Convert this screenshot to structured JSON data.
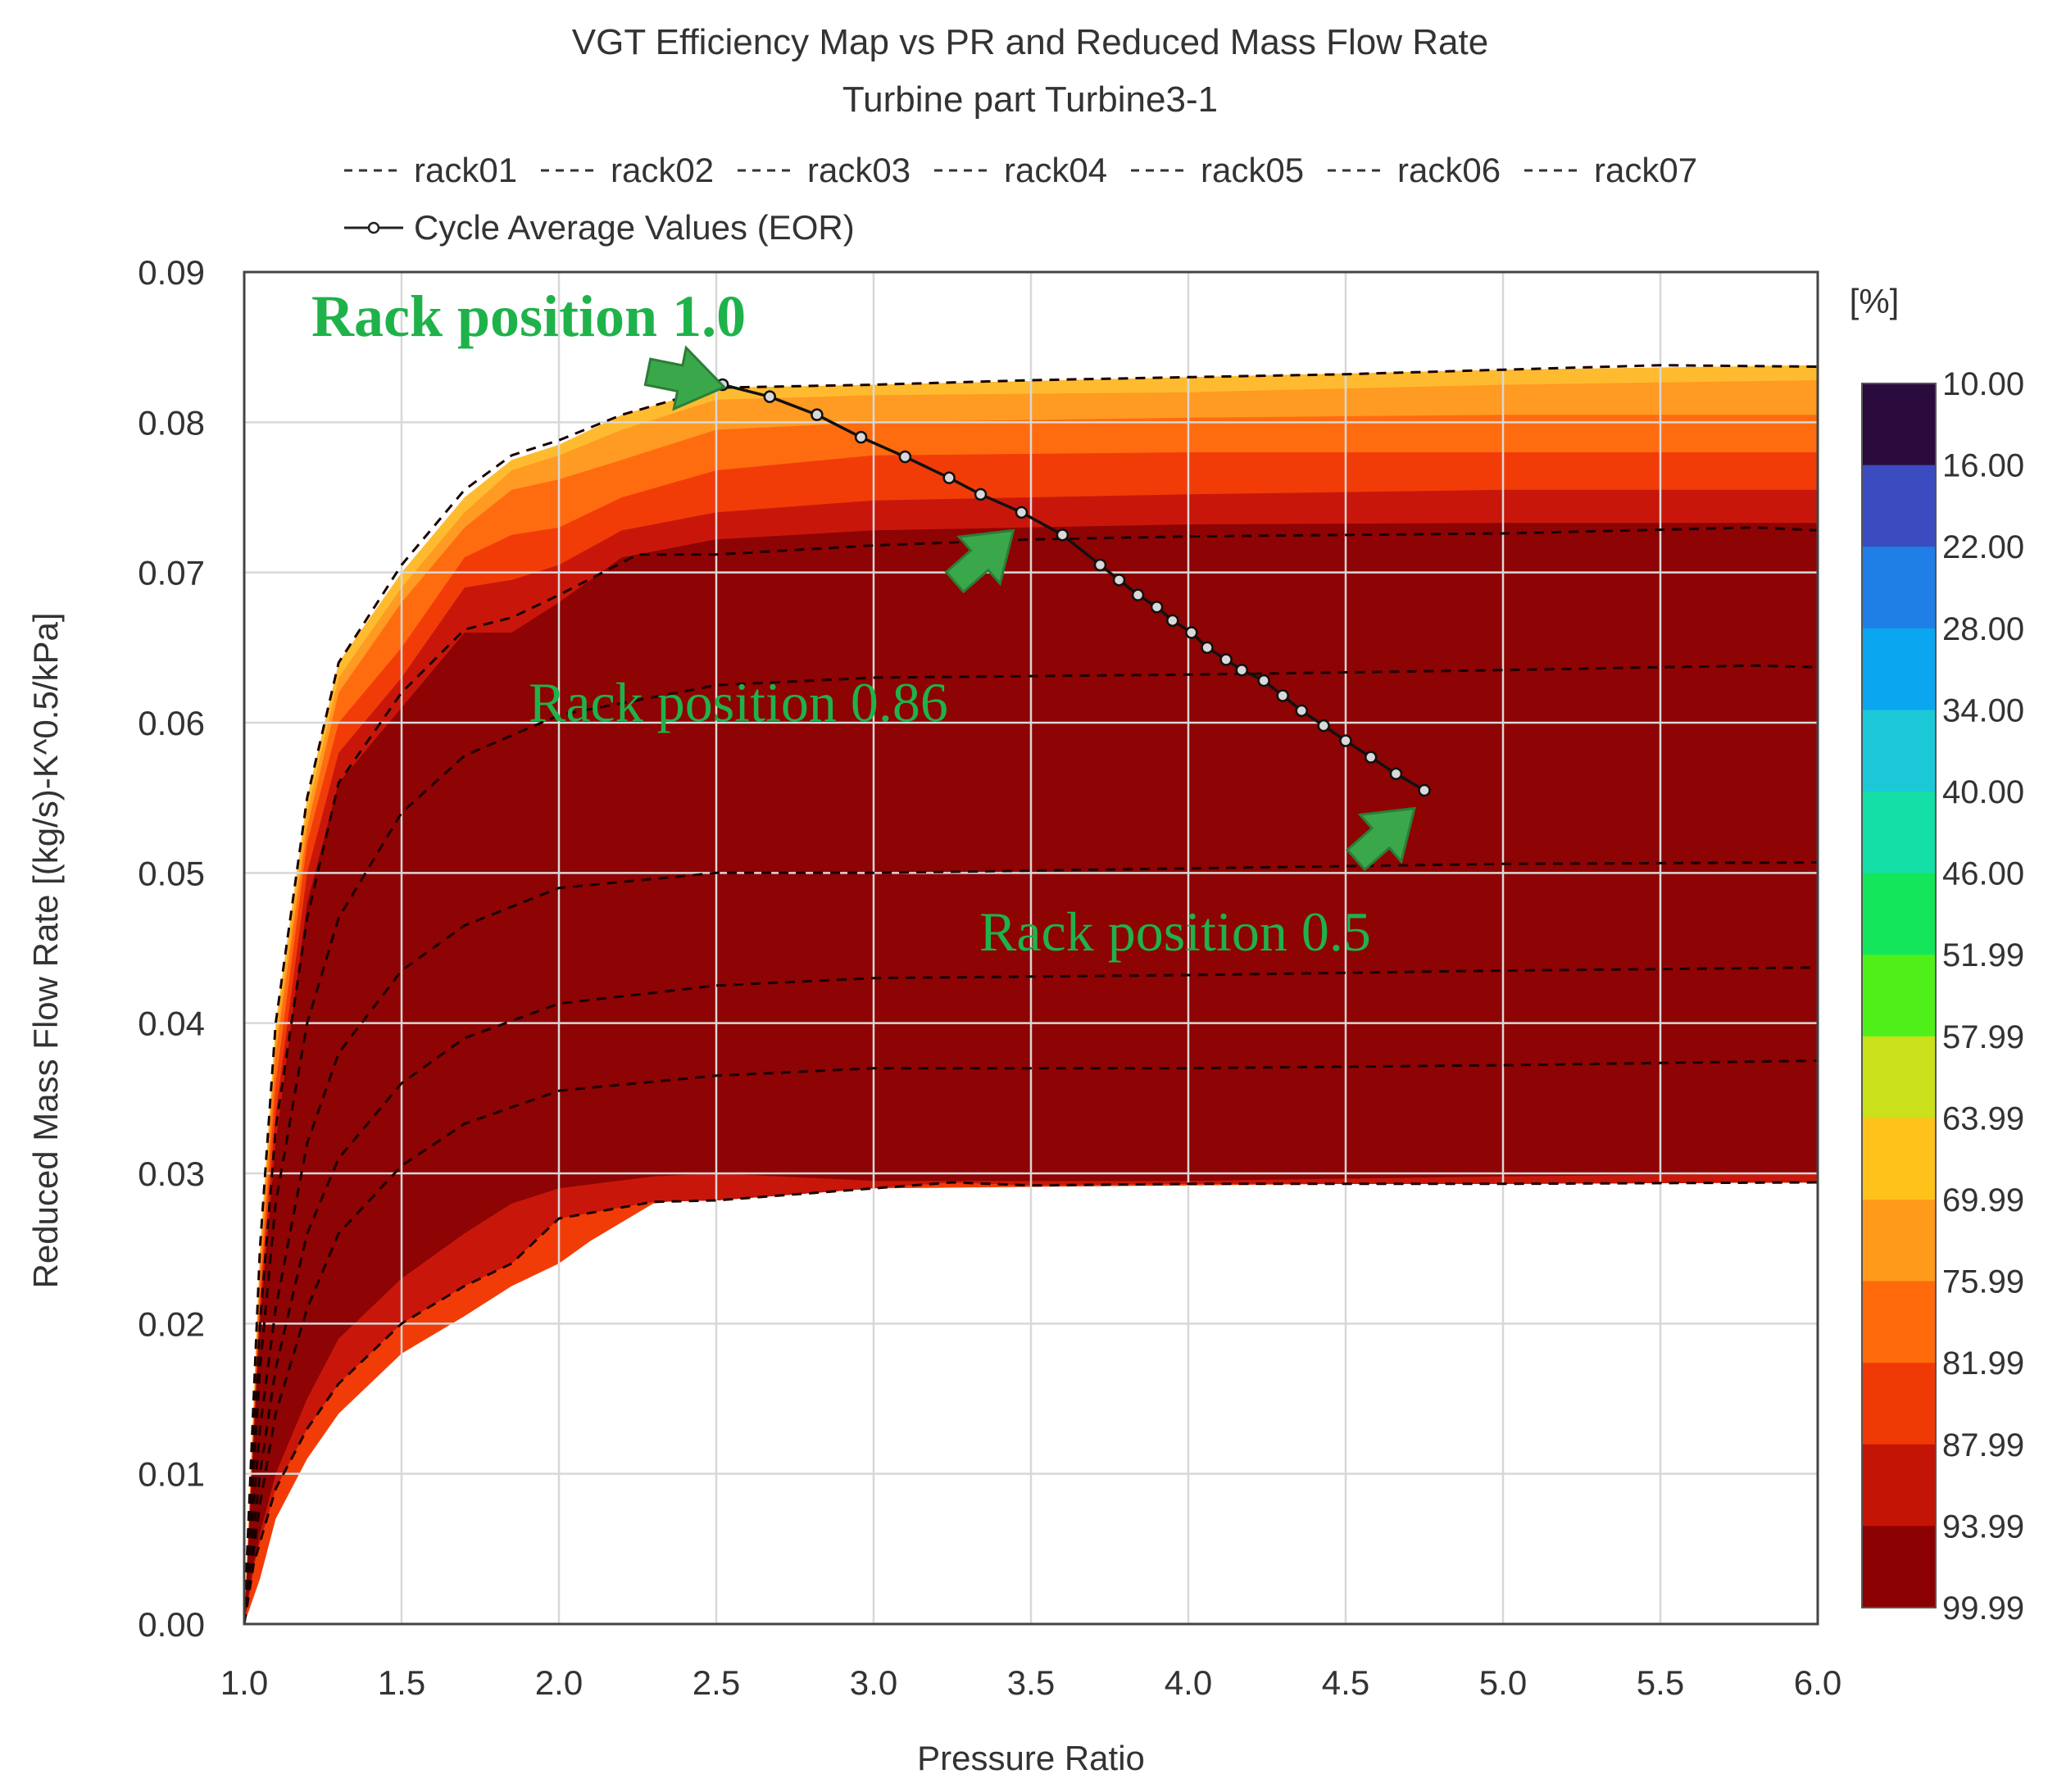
{
  "chart_data": {
    "type": "contour",
    "title": "VGT Efficiency Map vs PR and Reduced Mass Flow Rate",
    "subtitle": "Turbine part Turbine3-1",
    "xlabel": "Pressure Ratio",
    "ylabel": "Reduced Mass Flow Rate [(kg/s)-K^0.5/kPa]",
    "xlim": [
      1.0,
      6.0
    ],
    "ylim": [
      0.0,
      0.09
    ],
    "x_ticks": [
      "1.0",
      "1.5",
      "2.0",
      "2.5",
      "3.0",
      "3.5",
      "4.0",
      "4.5",
      "5.0",
      "5.5",
      "6.0"
    ],
    "y_ticks": [
      "0.00",
      "0.01",
      "0.02",
      "0.03",
      "0.04",
      "0.05",
      "0.06",
      "0.07",
      "0.08",
      "0.09"
    ],
    "grid": true,
    "legend_position": "top",
    "colorbar": {
      "unit": "[%]",
      "levels": [
        "10.00",
        "16.00",
        "22.00",
        "28.00",
        "34.00",
        "40.00",
        "46.00",
        "51.99",
        "57.99",
        "63.99",
        "69.99",
        "75.99",
        "81.99",
        "87.99",
        "93.99",
        "99.99"
      ],
      "colors": [
        "#2b0a3d",
        "#3b4cc0",
        "#1f7fe6",
        "#0aa6f0",
        "#1bc8d8",
        "#13dfa6",
        "#13e65a",
        "#4ff01a",
        "#c9e01a",
        "#ffc21a",
        "#ff9a1a",
        "#ff6a0a",
        "#f03a05",
        "#c41405",
        "#8b0000"
      ]
    },
    "efficiency_bands": [
      {
        "color": "#ffbb30",
        "upper": [
          [
            1.0,
            0.0
          ],
          [
            1.05,
            0.025
          ],
          [
            1.1,
            0.04
          ],
          [
            1.2,
            0.055
          ],
          [
            1.3,
            0.064
          ],
          [
            1.5,
            0.07
          ],
          [
            1.7,
            0.075
          ],
          [
            1.85,
            0.0775
          ],
          [
            2.0,
            0.0785
          ],
          [
            2.2,
            0.0805
          ],
          [
            2.5,
            0.0823
          ],
          [
            3.0,
            0.0825
          ],
          [
            4.0,
            0.083
          ],
          [
            5.0,
            0.0835
          ],
          [
            6.0,
            0.0838
          ]
        ]
      },
      {
        "color": "#ff9a22",
        "upper": [
          [
            1.0,
            0.0
          ],
          [
            1.05,
            0.024
          ],
          [
            1.1,
            0.039
          ],
          [
            1.2,
            0.054
          ],
          [
            1.3,
            0.063
          ],
          [
            1.5,
            0.069
          ],
          [
            1.7,
            0.074
          ],
          [
            1.85,
            0.0768
          ],
          [
            2.0,
            0.0778
          ],
          [
            2.2,
            0.0795
          ],
          [
            2.5,
            0.0815
          ],
          [
            3.0,
            0.0818
          ],
          [
            4.0,
            0.082
          ],
          [
            5.0,
            0.0825
          ],
          [
            6.0,
            0.0828
          ]
        ]
      },
      {
        "color": "#ff6c10",
        "upper": [
          [
            1.0,
            0.0
          ],
          [
            1.05,
            0.023
          ],
          [
            1.1,
            0.038
          ],
          [
            1.2,
            0.053
          ],
          [
            1.3,
            0.062
          ],
          [
            1.5,
            0.068
          ],
          [
            1.7,
            0.073
          ],
          [
            1.85,
            0.0755
          ],
          [
            2.0,
            0.0762
          ],
          [
            2.2,
            0.0775
          ],
          [
            2.5,
            0.0795
          ],
          [
            3.0,
            0.08
          ],
          [
            4.0,
            0.0803
          ],
          [
            5.0,
            0.0805
          ],
          [
            6.0,
            0.0805
          ]
        ]
      },
      {
        "color": "#f23c08",
        "upper": [
          [
            1.0,
            0.0
          ],
          [
            1.05,
            0.022
          ],
          [
            1.1,
            0.036
          ],
          [
            1.2,
            0.052
          ],
          [
            1.3,
            0.06
          ],
          [
            1.5,
            0.065
          ],
          [
            1.7,
            0.071
          ],
          [
            1.85,
            0.0725
          ],
          [
            2.0,
            0.073
          ],
          [
            2.2,
            0.075
          ],
          [
            2.5,
            0.0768
          ],
          [
            3.0,
            0.0778
          ],
          [
            4.0,
            0.078
          ],
          [
            5.0,
            0.078
          ],
          [
            6.0,
            0.078
          ]
        ]
      },
      {
        "color": "#c8170a",
        "upper": [
          [
            1.0,
            0.0
          ],
          [
            1.05,
            0.021
          ],
          [
            1.1,
            0.034
          ],
          [
            1.2,
            0.05
          ],
          [
            1.3,
            0.058
          ],
          [
            1.5,
            0.063
          ],
          [
            1.7,
            0.069
          ],
          [
            1.85,
            0.0695
          ],
          [
            2.0,
            0.0705
          ],
          [
            2.2,
            0.0728
          ],
          [
            2.5,
            0.074
          ],
          [
            3.0,
            0.0748
          ],
          [
            4.0,
            0.0752
          ],
          [
            5.0,
            0.0755
          ],
          [
            6.0,
            0.0755
          ]
        ]
      },
      {
        "color": "#8e0303",
        "upper": [
          [
            1.0,
            0.0
          ],
          [
            1.05,
            0.02
          ],
          [
            1.1,
            0.032
          ],
          [
            1.2,
            0.048
          ],
          [
            1.3,
            0.056
          ],
          [
            1.5,
            0.061
          ],
          [
            1.7,
            0.066
          ],
          [
            1.85,
            0.066
          ],
          [
            2.0,
            0.068
          ],
          [
            2.2,
            0.071
          ],
          [
            2.5,
            0.0722
          ],
          [
            3.0,
            0.0728
          ],
          [
            4.0,
            0.0732
          ],
          [
            5.0,
            0.0733
          ],
          [
            6.0,
            0.0733
          ]
        ]
      }
    ],
    "lower_bands": [
      {
        "color": "#f23c08",
        "boundary": [
          [
            1.0,
            0.0
          ],
          [
            1.05,
            0.003
          ],
          [
            1.1,
            0.007
          ],
          [
            1.2,
            0.011
          ],
          [
            1.3,
            0.014
          ],
          [
            1.5,
            0.018
          ],
          [
            1.7,
            0.0205
          ],
          [
            1.85,
            0.0225
          ],
          [
            2.0,
            0.024
          ],
          [
            2.1,
            0.0255
          ],
          [
            2.3,
            0.028
          ],
          [
            2.5,
            0.0285
          ],
          [
            3.0,
            0.029
          ],
          [
            4.0,
            0.0292
          ],
          [
            5.0,
            0.0294
          ],
          [
            6.0,
            0.0296
          ]
        ]
      },
      {
        "color": "#c8170a",
        "boundary": [
          [
            1.0,
            0.0
          ],
          [
            1.05,
            0.006
          ],
          [
            1.1,
            0.01
          ],
          [
            1.2,
            0.015
          ],
          [
            1.3,
            0.019
          ],
          [
            1.5,
            0.023
          ],
          [
            1.7,
            0.026
          ],
          [
            1.85,
            0.028
          ],
          [
            2.0,
            0.029
          ],
          [
            2.3,
            0.0298
          ],
          [
            2.5,
            0.03
          ],
          [
            3.0,
            0.0295
          ],
          [
            4.0,
            0.0295
          ],
          [
            5.0,
            0.0298
          ],
          [
            6.0,
            0.03
          ]
        ]
      }
    ],
    "map_lower_boundary": [
      [
        1.0,
        0.0
      ],
      [
        1.03,
        0.004
      ],
      [
        1.1,
        0.009
      ],
      [
        1.2,
        0.013
      ],
      [
        1.3,
        0.016
      ],
      [
        1.5,
        0.02
      ],
      [
        1.7,
        0.0225
      ],
      [
        1.85,
        0.024
      ],
      [
        2.0,
        0.027
      ],
      [
        2.3,
        0.0281
      ],
      [
        2.5,
        0.0282
      ],
      [
        3.0,
        0.029
      ],
      [
        3.25,
        0.0294
      ],
      [
        3.5,
        0.0292
      ],
      [
        4.0,
        0.0293
      ],
      [
        5.0,
        0.0293
      ],
      [
        6.0,
        0.0294
      ]
    ],
    "series": [
      {
        "name": "rack01",
        "style": "dashed",
        "x": [
          1.0,
          1.05,
          1.1,
          1.2,
          1.3,
          1.5,
          1.7,
          1.85,
          2.0,
          2.2,
          2.5,
          3.0,
          3.5,
          4.0,
          4.5,
          5.0,
          5.5,
          6.0
        ],
        "y": [
          0.0,
          0.025,
          0.04,
          0.055,
          0.064,
          0.0705,
          0.0755,
          0.0778,
          0.0788,
          0.0805,
          0.0823,
          0.0825,
          0.0828,
          0.083,
          0.0832,
          0.0835,
          0.0838,
          0.0837
        ]
      },
      {
        "name": "rack02",
        "style": "dashed",
        "x": [
          1.0,
          1.05,
          1.1,
          1.2,
          1.3,
          1.5,
          1.7,
          1.85,
          2.0,
          2.25,
          2.5,
          3.0,
          3.5,
          4.0,
          5.0,
          5.8,
          6.0
        ],
        "y": [
          0.0,
          0.02,
          0.033,
          0.047,
          0.056,
          0.062,
          0.0662,
          0.067,
          0.0685,
          0.0712,
          0.0712,
          0.0718,
          0.0722,
          0.0724,
          0.0726,
          0.073,
          0.0728
        ]
      },
      {
        "name": "rack03",
        "style": "dashed",
        "x": [
          1.0,
          1.05,
          1.1,
          1.2,
          1.3,
          1.5,
          1.7,
          2.0,
          2.5,
          3.0,
          4.0,
          5.0,
          5.8,
          6.0
        ],
        "y": [
          0.0,
          0.017,
          0.028,
          0.04,
          0.047,
          0.054,
          0.0578,
          0.0605,
          0.0625,
          0.063,
          0.0632,
          0.0635,
          0.0638,
          0.0637
        ]
      },
      {
        "name": "rack04",
        "style": "dashed",
        "x": [
          1.0,
          1.05,
          1.1,
          1.2,
          1.3,
          1.5,
          1.7,
          2.0,
          2.5,
          3.0,
          4.0,
          5.0,
          6.0
        ],
        "y": [
          0.0,
          0.013,
          0.021,
          0.032,
          0.038,
          0.0435,
          0.0465,
          0.049,
          0.05,
          0.05,
          0.0503,
          0.0506,
          0.0507
        ]
      },
      {
        "name": "rack05",
        "style": "dashed",
        "x": [
          1.0,
          1.05,
          1.1,
          1.2,
          1.3,
          1.5,
          1.7,
          2.0,
          2.5,
          3.0,
          4.0,
          5.0,
          6.0
        ],
        "y": [
          0.0,
          0.01,
          0.017,
          0.026,
          0.031,
          0.036,
          0.039,
          0.0413,
          0.0425,
          0.043,
          0.0432,
          0.0435,
          0.0437
        ]
      },
      {
        "name": "rack06",
        "style": "dashed",
        "x": [
          1.0,
          1.05,
          1.1,
          1.2,
          1.3,
          1.5,
          1.7,
          2.0,
          2.5,
          3.0,
          4.0,
          5.0,
          6.0
        ],
        "y": [
          0.0,
          0.008,
          0.014,
          0.021,
          0.026,
          0.0305,
          0.0333,
          0.0355,
          0.0365,
          0.037,
          0.037,
          0.0372,
          0.0375
        ]
      },
      {
        "name": "rack07",
        "style": "dashed",
        "x": [
          1.0,
          1.03,
          1.1,
          1.2,
          1.3,
          1.5,
          1.7,
          1.85,
          2.0,
          2.3,
          2.5,
          3.0,
          3.25,
          3.5,
          4.0,
          5.0,
          6.0
        ],
        "y": [
          0.0,
          0.004,
          0.009,
          0.013,
          0.016,
          0.02,
          0.0225,
          0.024,
          0.027,
          0.0281,
          0.0282,
          0.029,
          0.0294,
          0.0292,
          0.0293,
          0.0293,
          0.0294
        ]
      },
      {
        "name": "Cycle Average Values (EOR)",
        "style": "solid-marker",
        "x": [
          2.52,
          2.67,
          2.82,
          2.96,
          3.1,
          3.24,
          3.34,
          3.47,
          3.6,
          3.72,
          3.78,
          3.84,
          3.9,
          3.95,
          4.01,
          4.06,
          4.12,
          4.17,
          4.24,
          4.3,
          4.36,
          4.43,
          4.5,
          4.58,
          4.66,
          4.75
        ],
        "y": [
          0.0825,
          0.0817,
          0.0805,
          0.079,
          0.0777,
          0.0763,
          0.0752,
          0.074,
          0.0725,
          0.0705,
          0.0695,
          0.0685,
          0.0677,
          0.0668,
          0.066,
          0.065,
          0.0642,
          0.0635,
          0.0628,
          0.0618,
          0.0608,
          0.0598,
          0.0588,
          0.0577,
          0.0566,
          0.0555
        ]
      }
    ],
    "annotations": [
      {
        "text": "Rack position 1.0",
        "x": 2.52,
        "y": 0.0825
      },
      {
        "text": "Rack position 0.86",
        "x": 3.47,
        "y": 0.074
      },
      {
        "text": "Rack position 0.5",
        "x": 4.75,
        "y": 0.0555
      }
    ]
  }
}
